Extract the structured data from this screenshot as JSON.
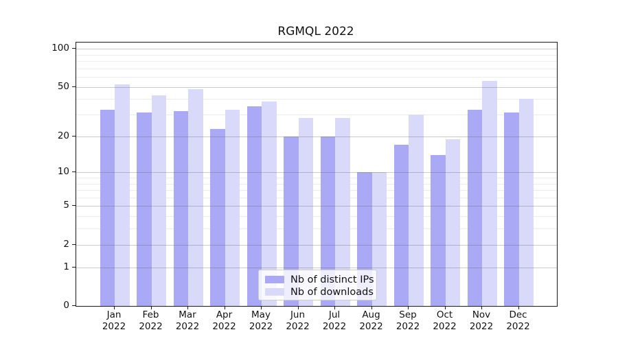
{
  "title": "RGMQL 2022",
  "chart_data": {
    "type": "bar",
    "title": "RGMQL 2022",
    "categories": [
      "Jan",
      "Feb",
      "Mar",
      "Apr",
      "May",
      "Jun",
      "Jul",
      "Aug",
      "Sep",
      "Oct",
      "Nov",
      "Dec"
    ],
    "x_tick_year": "2022",
    "series": [
      {
        "name": "Nb of distinct IPs",
        "color": "#a9a9f5",
        "values": [
          33,
          31,
          32,
          23,
          35,
          20,
          20,
          10,
          17,
          14,
          33,
          31
        ]
      },
      {
        "name": "Nb of downloads",
        "color": "#d9d9fa",
        "values": [
          52,
          43,
          48,
          33,
          38,
          28,
          28,
          10,
          30,
          19,
          56,
          40
        ]
      }
    ],
    "xlabel": "",
    "ylabel": "",
    "y_scale": "log10(1+value)",
    "y_major_ticks": [
      0,
      1,
      2,
      5,
      10,
      20,
      50,
      100
    ],
    "y_minor_ticks": [
      3,
      4,
      6,
      7,
      8,
      9,
      30,
      40,
      60,
      70,
      80,
      90
    ],
    "ylim": [
      0,
      112
    ],
    "grid": true,
    "legend_position": "lower center"
  },
  "legend": {
    "items": [
      {
        "label": "Nb of distinct IPs"
      },
      {
        "label": "Nb of downloads"
      }
    ]
  },
  "colors": {
    "series_dark": "#a9a9f5",
    "series_light": "#d9d9fa",
    "minor_grid": "#ececec",
    "major_grid_overlay": "rgba(95,95,95,0.33)",
    "spine": "#1a1a1a",
    "text": "#111111",
    "background": "#ffffff"
  }
}
